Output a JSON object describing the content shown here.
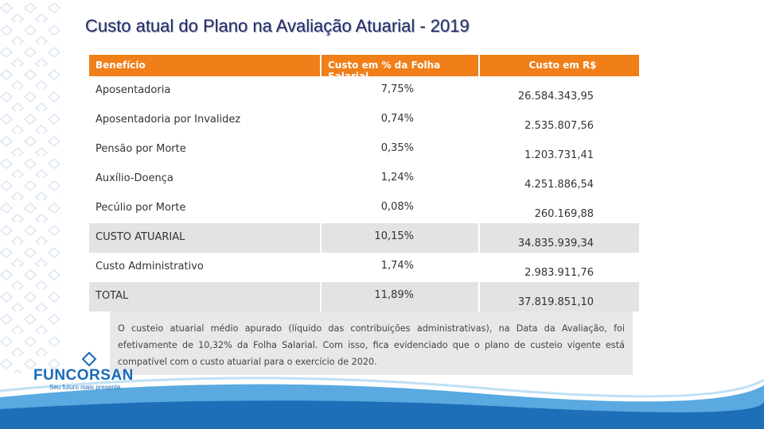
{
  "header": {
    "title": "Custo atual do Plano na Avaliação Atuarial - 2019"
  },
  "table": {
    "columns": [
      "Benefício",
      "Custo em % da Folha Salarial",
      "Custo em R$"
    ],
    "rows": [
      [
        "Aposentadoria",
        "7,75%",
        "26.584.343,95"
      ],
      [
        "Aposentadoria por Invalidez",
        "0,74%",
        "2.535.807,56"
      ],
      [
        "Pensão por Morte",
        "0,35%",
        "1.203.731,41"
      ],
      [
        "Auxílio-Doença",
        "1,24%",
        "4.251.886,54"
      ],
      [
        "Pecúlio por Morte",
        "0,08%",
        "260.169,88"
      ],
      [
        "CUSTO ATUARIAL",
        "10,15%",
        "34.835.939,34"
      ],
      [
        "Custo Administrativo",
        "1,74%",
        "2.983.911,76"
      ],
      [
        "TOTAL",
        "11,89%",
        "37.819.851,10"
      ]
    ]
  },
  "note": "O custeio atuarial médio apurado (líquido das contribuições administrativas), na Data da Avaliação, foi efetivamente de 10,32% da Folha Salarial. Com isso, fica evidenciado que o plano de custeio vigente está compatível com o custo atuarial para o exercício de 2020.",
  "logo": {
    "name": "FUNCORSAN",
    "tagline": "Seu futuro mais presente."
  }
}
